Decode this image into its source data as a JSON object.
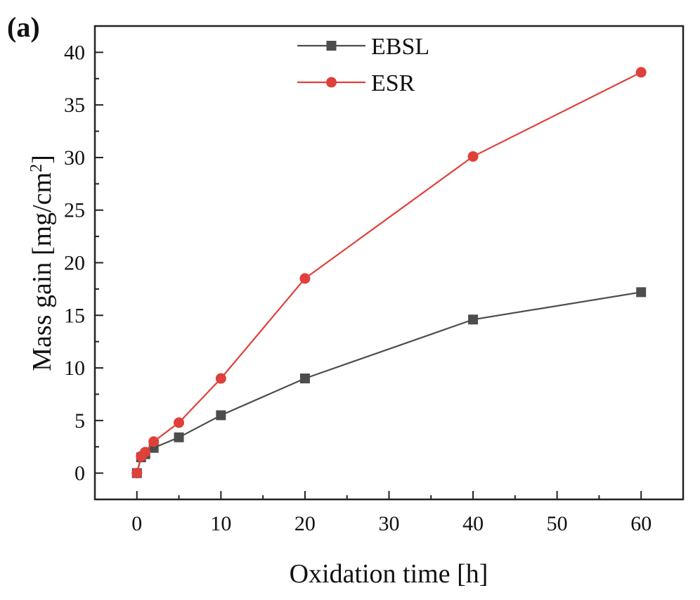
{
  "panel_label": "(a)",
  "chart_data": {
    "type": "line",
    "xlabel": "Oxidation time [h]",
    "ylabel": "Mass gain [mg/cm",
    "ylabel_sup": "2",
    "ylabel_end": "]",
    "xlim": [
      -5,
      65
    ],
    "ylim": [
      -2.5,
      42.5
    ],
    "xticks": [
      0,
      10,
      20,
      30,
      40,
      50,
      60
    ],
    "yticks": [
      0,
      5,
      10,
      15,
      20,
      25,
      30,
      35,
      40
    ],
    "legend_position": "top-center",
    "series": [
      {
        "name": "EBSL",
        "color": "#4d4d4d",
        "marker": "square",
        "x": [
          0,
          0.5,
          1,
          2,
          5,
          10,
          20,
          40,
          60
        ],
        "y": [
          0,
          1.5,
          1.8,
          2.4,
          3.4,
          5.5,
          9.0,
          14.6,
          17.2
        ]
      },
      {
        "name": "ESR",
        "color": "#e0403a",
        "marker": "circle",
        "x": [
          0,
          0.5,
          1,
          2,
          5,
          10,
          20,
          40,
          60
        ],
        "y": [
          0,
          1.6,
          2.0,
          3.0,
          4.8,
          9.0,
          18.5,
          30.1,
          38.1
        ]
      }
    ]
  }
}
